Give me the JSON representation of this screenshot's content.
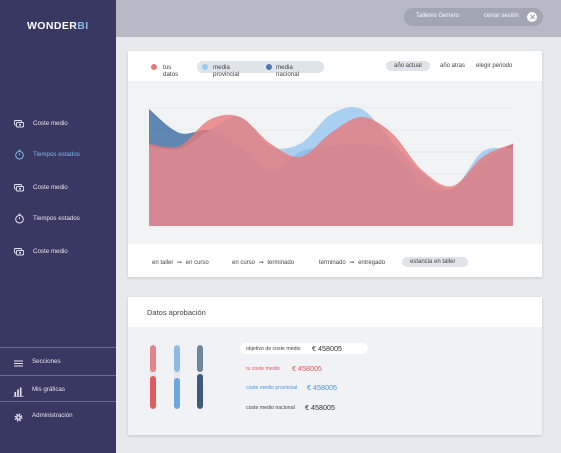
{
  "app": {
    "logo_main": "WONDER",
    "logo_accent": "BI"
  },
  "sidebar": {
    "items": [
      {
        "label": "Coste medio",
        "icon": "money-icon",
        "active": false
      },
      {
        "label": "Tiempos estados",
        "icon": "stopwatch-icon",
        "active": true
      },
      {
        "label": "Coste medio",
        "icon": "money-icon",
        "active": false
      },
      {
        "label": "Tiempos estados",
        "icon": "stopwatch-icon",
        "active": false
      },
      {
        "label": "Coste medio",
        "icon": "money-icon",
        "active": false
      }
    ],
    "bottom": [
      {
        "label": "Secciones",
        "icon": "list-icon"
      },
      {
        "label": "Mis gráficas",
        "icon": "bar-chart-icon"
      },
      {
        "label": "Administración",
        "icon": "gear-icon"
      }
    ]
  },
  "topbar": {
    "user_name": "Talleres Gerrero",
    "logout_label": "cerrar sesión"
  },
  "legend": {
    "items": [
      {
        "label": "tus datos",
        "color": "#e8777a"
      },
      {
        "label": "media provincial",
        "color": "#9cc9ee"
      },
      {
        "label": "media nacional",
        "color": "#4f7bab"
      }
    ]
  },
  "time_filters": [
    {
      "label": "año actual",
      "active": true
    },
    {
      "label": "año atras",
      "active": false
    },
    {
      "label": "elegir periodo",
      "active": false
    }
  ],
  "phases": [
    {
      "from": "en taller",
      "to": "en curso",
      "arrow": "➞"
    },
    {
      "from": "en curso",
      "to": "terminado",
      "arrow": "➞"
    },
    {
      "from": "terminado",
      "to": "entregado",
      "arrow": "➞"
    },
    {
      "label": "estancia en taller",
      "active": true
    }
  ],
  "chart_data": {
    "type": "area",
    "x": [
      0,
      1,
      2,
      3,
      4,
      5,
      6,
      7,
      8,
      9,
      10,
      11,
      12
    ],
    "series": [
      {
        "name": "tus datos",
        "color": "#e8777a",
        "values": [
          62,
          60,
          80,
          82,
          62,
          52,
          70,
          82,
          70,
          42,
          30,
          52,
          62
        ]
      },
      {
        "name": "media provincial",
        "color": "#9cc9ee",
        "values": [
          60,
          58,
          72,
          82,
          60,
          62,
          84,
          88,
          64,
          40,
          28,
          56,
          58
        ]
      },
      {
        "name": "media nacional",
        "color": "#4f7bab",
        "values": [
          88,
          70,
          72,
          60,
          40,
          56,
          60,
          62,
          56,
          30,
          28,
          48,
          62
        ]
      }
    ],
    "ylim": [
      0,
      100
    ],
    "grid": true
  },
  "approval": {
    "title": "Datos aprobación",
    "bars": [
      {
        "color": "#e05a5e",
        "value": 0.52
      },
      {
        "color": "#6aa8dd",
        "value": 0.48
      },
      {
        "color": "#3c5b7a",
        "value": 0.55
      }
    ],
    "stats": [
      {
        "label": "objetivo de coste medio",
        "value": "€ 458005",
        "color": "#333333"
      },
      {
        "label": "tu coste medio",
        "value": "€ 458005",
        "color": "#e05a5e"
      },
      {
        "label": "coste medio provincial",
        "value": "€ 458005",
        "color": "#4a93d4"
      },
      {
        "label": "coste medio nacional",
        "value": "€ 458005",
        "color": "#333333"
      }
    ]
  }
}
